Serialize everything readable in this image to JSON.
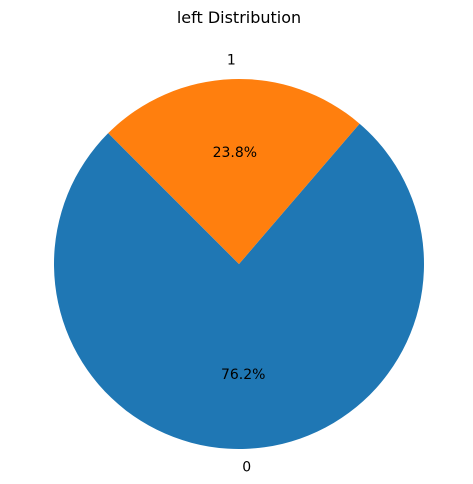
{
  "chart_data": {
    "type": "pie",
    "title": "left Distribution",
    "slices": [
      {
        "label": "0",
        "value": 76.2,
        "pct_label": "76.2%",
        "color": "#1f77b4"
      },
      {
        "label": "1",
        "value": 23.8,
        "pct_label": "23.8%",
        "color": "#ff7f0e"
      }
    ],
    "start_angle_deg": 135,
    "direction": "counterclockwise",
    "legend": "none"
  }
}
